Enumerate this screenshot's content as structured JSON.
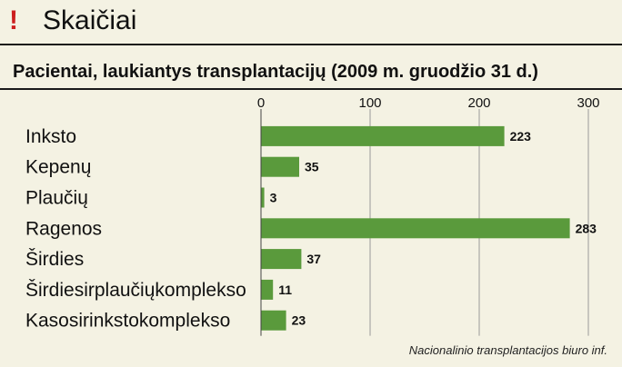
{
  "header": {
    "mark": "!",
    "section": "Skaičiai"
  },
  "chart_data": {
    "type": "bar",
    "orientation": "horizontal",
    "title": "Pacientai, laukiantys transplantacijų (2009 m. gruodžio 31 d.)",
    "categories": [
      "Inksto",
      "Kepenų",
      "Plaučių",
      "Ragenos",
      "Širdies",
      "Širdiesirplaučiųkomplekso",
      "Kasosirinkstokomplekso"
    ],
    "values": [
      223,
      35,
      3,
      283,
      37,
      11,
      23
    ],
    "value_labels": [
      "223",
      "35",
      "3",
      "283",
      "37",
      "11",
      "23"
    ],
    "xticks": [
      0,
      100,
      200,
      300
    ],
    "xtick_labels": [
      "0",
      "100",
      "200",
      "300"
    ],
    "xlim": [
      0,
      300
    ],
    "grid": true,
    "bar_color": "#5a9a3c",
    "grid_color": "#9a9a9a"
  },
  "source": "Nacionalinio transplantacijos biuro inf."
}
